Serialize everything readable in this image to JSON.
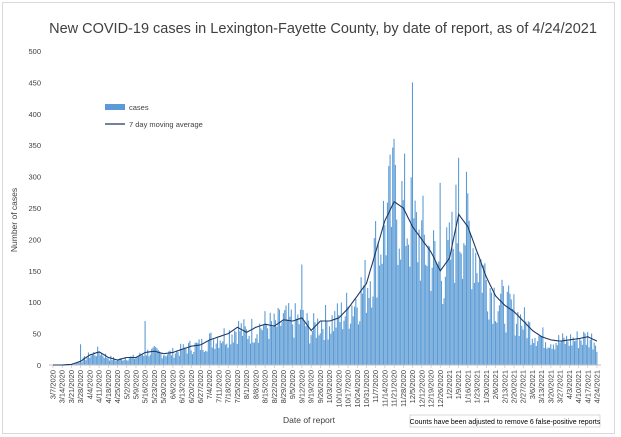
{
  "chart_data": {
    "type": "bar",
    "title": "New COVID-19 cases in Lexington-Fayette County, by date of report, as of 4/24/2021",
    "xlabel": "Date of report",
    "ylabel": "Number of cases",
    "ylim": [
      0,
      500
    ],
    "y_ticks": [
      "0",
      "50",
      "100",
      "150",
      "200",
      "250",
      "300",
      "350",
      "400",
      "450",
      "500"
    ],
    "grid": false,
    "legend_position": "top-left",
    "x_tick_labels": [
      "3/7/2020",
      "3/14/2020",
      "3/21/2020",
      "3/28/2020",
      "4/4/2020",
      "4/11/2020",
      "4/18/2020",
      "4/25/2020",
      "5/2/2020",
      "5/9/2020",
      "5/16/2020",
      "5/23/2020",
      "5/30/2020",
      "6/6/2020",
      "6/13/2020",
      "6/20/2020",
      "6/27/2020",
      "7/4/2020",
      "7/11/2020",
      "7/18/2020",
      "7/25/2020",
      "8/1/2020",
      "8/8/2020",
      "8/15/2020",
      "8/22/2020",
      "8/29/2020",
      "9/5/2020",
      "9/12/2020",
      "9/19/2020",
      "9/26/2020",
      "10/3/2020",
      "10/10/2020",
      "10/17/2020",
      "10/24/2020",
      "10/31/2020",
      "11/7/2020",
      "11/14/2020",
      "11/21/2020",
      "11/28/2020",
      "12/5/2020",
      "12/12/2020",
      "12/19/2020",
      "12/26/2020",
      "1/2/2021",
      "1/9/2021",
      "1/16/2021",
      "1/23/2021",
      "1/30/2021",
      "2/6/2021",
      "2/13/2021",
      "2/20/2021",
      "2/27/2021",
      "3/6/2021",
      "3/13/2021",
      "3/20/2021",
      "3/27/2021",
      "4/3/2021",
      "4/10/2021",
      "4/17/2021",
      "4/24/2021"
    ],
    "weekly_x": [
      "3/7/2020",
      "3/14/2020",
      "3/21/2020",
      "3/28/2020",
      "4/4/2020",
      "4/11/2020",
      "4/18/2020",
      "4/25/2020",
      "5/2/2020",
      "5/9/2020",
      "5/16/2020",
      "5/23/2020",
      "5/30/2020",
      "6/6/2020",
      "6/13/2020",
      "6/20/2020",
      "6/27/2020",
      "7/4/2020",
      "7/11/2020",
      "7/18/2020",
      "7/25/2020",
      "8/1/2020",
      "8/8/2020",
      "8/15/2020",
      "8/22/2020",
      "8/29/2020",
      "9/5/2020",
      "9/12/2020",
      "9/19/2020",
      "9/26/2020",
      "10/3/2020",
      "10/10/2020",
      "10/17/2020",
      "10/24/2020",
      "10/31/2020",
      "11/7/2020",
      "11/14/2020",
      "11/21/2020",
      "11/28/2020",
      "12/5/2020",
      "12/12/2020",
      "12/19/2020",
      "12/26/2020",
      "1/2/2021",
      "1/9/2021",
      "1/16/2021",
      "1/23/2021",
      "1/30/2021",
      "2/6/2021",
      "2/13/2021",
      "2/20/2021",
      "2/27/2021",
      "3/6/2021",
      "3/13/2021",
      "3/20/2021",
      "3/27/2021",
      "4/3/2021",
      "4/10/2021",
      "4/17/2021",
      "4/24/2021"
    ],
    "series": [
      {
        "name": "cases",
        "color": "#5b9bd5",
        "values": [
          0,
          0,
          1,
          6,
          16,
          22,
          12,
          8,
          12,
          12,
          20,
          22,
          18,
          20,
          25,
          30,
          32,
          40,
          45,
          50,
          60,
          52,
          60,
          65,
          62,
          72,
          70,
          75,
          55,
          70,
          70,
          75,
          90,
          110,
          130,
          180,
          230,
          260,
          250,
          220,
          200,
          180,
          150,
          170,
          240,
          220,
          180,
          140,
          110,
          95,
          85,
          70,
          55,
          45,
          40,
          38,
          40,
          42,
          45,
          38
        ],
        "peaks": [
          {
            "x": "3/28/2020",
            "y": 33
          },
          {
            "x": "5/16/2020",
            "y": 70
          },
          {
            "x": "9/12/2020",
            "y": 160
          },
          {
            "x": "11/21/2020",
            "y": 360
          },
          {
            "x": "12/5/2020",
            "y": 450
          },
          {
            "x": "12/26/2020",
            "y": 290
          },
          {
            "x": "1/9/2021",
            "y": 330
          }
        ]
      },
      {
        "name": "7 day moving average",
        "color": "#1f3864",
        "values": [
          0,
          0,
          1,
          6,
          16,
          21,
          12,
          8,
          12,
          12,
          20,
          22,
          18,
          20,
          25,
          30,
          32,
          40,
          45,
          50,
          60,
          52,
          60,
          65,
          62,
          72,
          70,
          75,
          55,
          70,
          70,
          75,
          90,
          110,
          130,
          180,
          230,
          260,
          250,
          220,
          200,
          180,
          150,
          170,
          240,
          220,
          180,
          140,
          110,
          95,
          85,
          70,
          55,
          45,
          40,
          38,
          40,
          42,
          45,
          38
        ]
      }
    ]
  },
  "note": "Counts have been adjusted to remove 6 false-positive reports"
}
